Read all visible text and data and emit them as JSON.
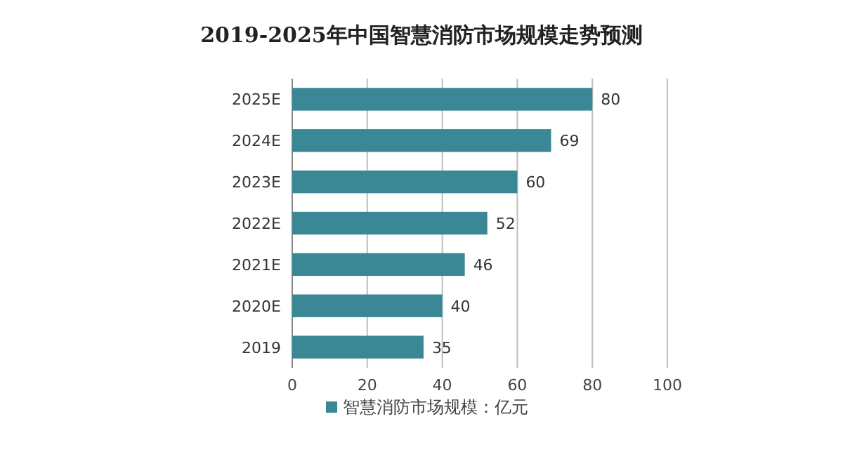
{
  "chart_data": {
    "type": "bar",
    "orientation": "horizontal",
    "title": "2019-2025年中国智慧消防市场规模走势预测",
    "categories": [
      "2025E",
      "2024E",
      "2023E",
      "2022E",
      "2021E",
      "2020E",
      "2019"
    ],
    "series": [
      {
        "name": "智慧消防市场规模：亿元",
        "color": "#3a8795",
        "values": [
          80,
          69,
          60,
          52,
          46,
          40,
          35
        ]
      }
    ],
    "xlim": [
      0,
      100
    ],
    "xticks": [
      0,
      20,
      40,
      60,
      80,
      100
    ],
    "grid": "x",
    "legend": "bottom",
    "data_labels": true
  }
}
